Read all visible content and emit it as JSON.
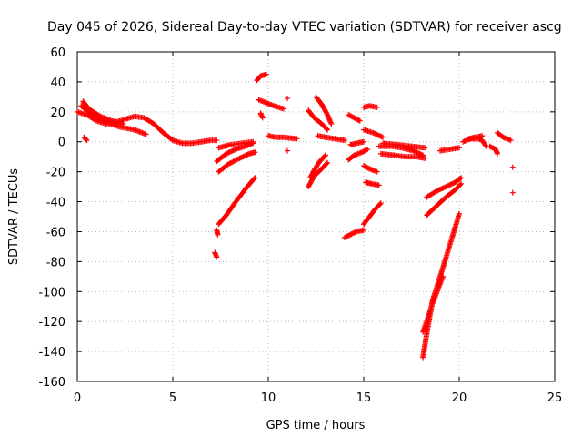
{
  "chart_data": {
    "type": "scatter",
    "title": "Day 045 of 2026, Sidereal Day-to-day VTEC variation (SDTVAR) for receiver ascg",
    "xlabel": "GPS time / hours",
    "ylabel": "SDTVAR / TECUs",
    "xlim": [
      0,
      25
    ],
    "ylim": [
      -160,
      60
    ],
    "xticks": [
      "0",
      "5",
      "10",
      "15",
      "20",
      "25"
    ],
    "yticks": [
      "60",
      "40",
      "20",
      "0",
      "-20",
      "-40",
      "-60",
      "-80",
      "-100",
      "-120",
      "-140",
      "-160"
    ],
    "grid": true,
    "marker": "plus",
    "color": "#ff0000",
    "tracks": [
      {
        "x": [
          0.0,
          0.5,
          1.0,
          1.5,
          2.0,
          2.5,
          3.0,
          3.5,
          4.0,
          4.5,
          5.0,
          5.5,
          6.0,
          6.5,
          7.0,
          7.3
        ],
        "y": [
          20,
          18,
          14,
          12,
          13,
          15,
          17,
          16,
          12,
          6,
          1,
          -1,
          -1,
          0,
          1,
          1
        ]
      },
      {
        "x": [
          0.2,
          0.8,
          1.5,
          2.2,
          3.0,
          3.6
        ],
        "y": [
          24,
          18,
          13,
          10,
          8,
          5
        ]
      },
      {
        "x": [
          0.3,
          0.6,
          1.2,
          1.8,
          2.4
        ],
        "y": [
          27,
          22,
          17,
          14,
          12
        ]
      },
      {
        "x": [
          0.35,
          0.5
        ],
        "y": [
          3,
          1
        ]
      },
      {
        "x": [
          7.2,
          7.3
        ],
        "y": [
          -74,
          -77
        ]
      },
      {
        "x": [
          7.3,
          7.35
        ],
        "y": [
          -59,
          -62
        ]
      },
      {
        "x": [
          7.4,
          7.8,
          8.3,
          8.9,
          9.3
        ],
        "y": [
          -55,
          -49,
          -40,
          -30,
          -24
        ]
      },
      {
        "x": [
          7.4,
          7.9,
          8.5,
          9.0,
          9.3
        ],
        "y": [
          -20,
          -15,
          -11,
          -8,
          -7
        ]
      },
      {
        "x": [
          7.3,
          7.8,
          8.3,
          8.8,
          9.2
        ],
        "y": [
          -13,
          -8,
          -5,
          -3,
          -1
        ]
      },
      {
        "x": [
          7.4,
          8.0,
          8.6,
          9.2
        ],
        "y": [
          -4,
          -2,
          -1,
          0
        ]
      },
      {
        "x": [
          9.4,
          9.6,
          9.9
        ],
        "y": [
          41,
          44,
          45
        ]
      },
      {
        "x": [
          9.6,
          9.7
        ],
        "y": [
          19,
          16
        ]
      },
      {
        "x": [
          9.5,
          9.9,
          10.3,
          10.8
        ],
        "y": [
          28,
          26,
          24,
          22
        ]
      },
      {
        "x": [
          10.0,
          10.4,
          10.8,
          11.5
        ],
        "y": [
          4,
          3,
          3,
          2
        ]
      },
      {
        "x": [
          11.0
        ],
        "y": [
          29
        ]
      },
      {
        "x": [
          11.0
        ],
        "y": [
          -6
        ]
      },
      {
        "x": [
          12.1,
          12.4,
          12.8,
          13.1
        ],
        "y": [
          -30,
          -23,
          -18,
          -14
        ]
      },
      {
        "x": [
          12.2,
          12.4,
          12.7,
          13.0
        ],
        "y": [
          -24,
          -19,
          -13,
          -9
        ]
      },
      {
        "x": [
          12.5,
          12.8,
          13.1,
          13.3
        ],
        "y": [
          30,
          25,
          18,
          12
        ]
      },
      {
        "x": [
          12.1,
          12.4,
          12.8,
          13.1
        ],
        "y": [
          21,
          16,
          12,
          8
        ]
      },
      {
        "x": [
          12.6,
          13.0,
          13.5,
          14.0
        ],
        "y": [
          4,
          3,
          2,
          1
        ]
      },
      {
        "x": [
          14.0,
          14.3,
          14.6,
          15.0
        ],
        "y": [
          -64,
          -62,
          -60,
          -59
        ]
      },
      {
        "x": [
          15.0,
          15.3,
          15.6,
          15.9
        ],
        "y": [
          -55,
          -50,
          -45,
          -41
        ]
      },
      {
        "x": [
          14.2,
          14.5,
          14.9,
          15.2
        ],
        "y": [
          -12,
          -9,
          -7,
          -5
        ]
      },
      {
        "x": [
          14.3,
          14.6,
          15.0
        ],
        "y": [
          -2,
          -1,
          0
        ]
      },
      {
        "x": [
          14.2,
          14.5,
          14.8
        ],
        "y": [
          18,
          16,
          14
        ]
      },
      {
        "x": [
          15.0,
          15.3,
          15.7
        ],
        "y": [
          23,
          24,
          23
        ]
      },
      {
        "x": [
          15.0,
          15.5,
          16.0
        ],
        "y": [
          8,
          6,
          3
        ]
      },
      {
        "x": [
          15.0,
          15.3,
          15.7
        ],
        "y": [
          -16,
          -18,
          -20
        ]
      },
      {
        "x": [
          15.1,
          15.4,
          15.8
        ],
        "y": [
          -27,
          -28,
          -29
        ]
      },
      {
        "x": [
          15.8,
          16.5,
          17.0,
          17.6,
          18.1
        ],
        "y": [
          -3,
          -3,
          -4,
          -6,
          -9
        ]
      },
      {
        "x": [
          15.9,
          16.6,
          17.2,
          17.8,
          18.2
        ],
        "y": [
          -8,
          -9,
          -10,
          -10,
          -11
        ]
      },
      {
        "x": [
          16.0,
          16.8,
          17.5,
          18.2
        ],
        "y": [
          -1,
          -2,
          -3,
          -4
        ]
      },
      {
        "x": [
          18.1,
          18.3,
          18.6,
          19.1,
          19.6,
          20.0
        ],
        "y": [
          -144,
          -128,
          -106,
          -86,
          -65,
          -48
        ]
      },
      {
        "x": [
          18.1,
          18.35,
          18.6,
          18.9,
          19.15
        ],
        "y": [
          -127,
          -118,
          -108,
          -98,
          -90
        ]
      },
      {
        "x": [
          18.3,
          18.8,
          19.3,
          19.8,
          20.1
        ],
        "y": [
          -49,
          -43,
          -37,
          -32,
          -28
        ]
      },
      {
        "x": [
          18.3,
          18.8,
          19.3,
          19.8,
          20.1
        ],
        "y": [
          -37,
          -33,
          -30,
          -27,
          -24
        ]
      },
      {
        "x": [
          19.0,
          19.5,
          20.0
        ],
        "y": [
          -6,
          -5,
          -4
        ]
      },
      {
        "x": [
          20.2,
          20.6,
          21.0,
          21.2,
          21.4
        ],
        "y": [
          0,
          2,
          2,
          1,
          -3
        ]
      },
      {
        "x": [
          20.5,
          20.8,
          21.2
        ],
        "y": [
          2,
          3,
          4
        ]
      },
      {
        "x": [
          21.6,
          21.9,
          22.0
        ],
        "y": [
          -3,
          -5,
          -8
        ]
      },
      {
        "x": [
          22.0,
          22.3,
          22.7
        ],
        "y": [
          6,
          3,
          1
        ]
      },
      {
        "x": [
          22.8
        ],
        "y": [
          -17
        ]
      },
      {
        "x": [
          22.8
        ],
        "y": [
          -34
        ]
      }
    ]
  }
}
